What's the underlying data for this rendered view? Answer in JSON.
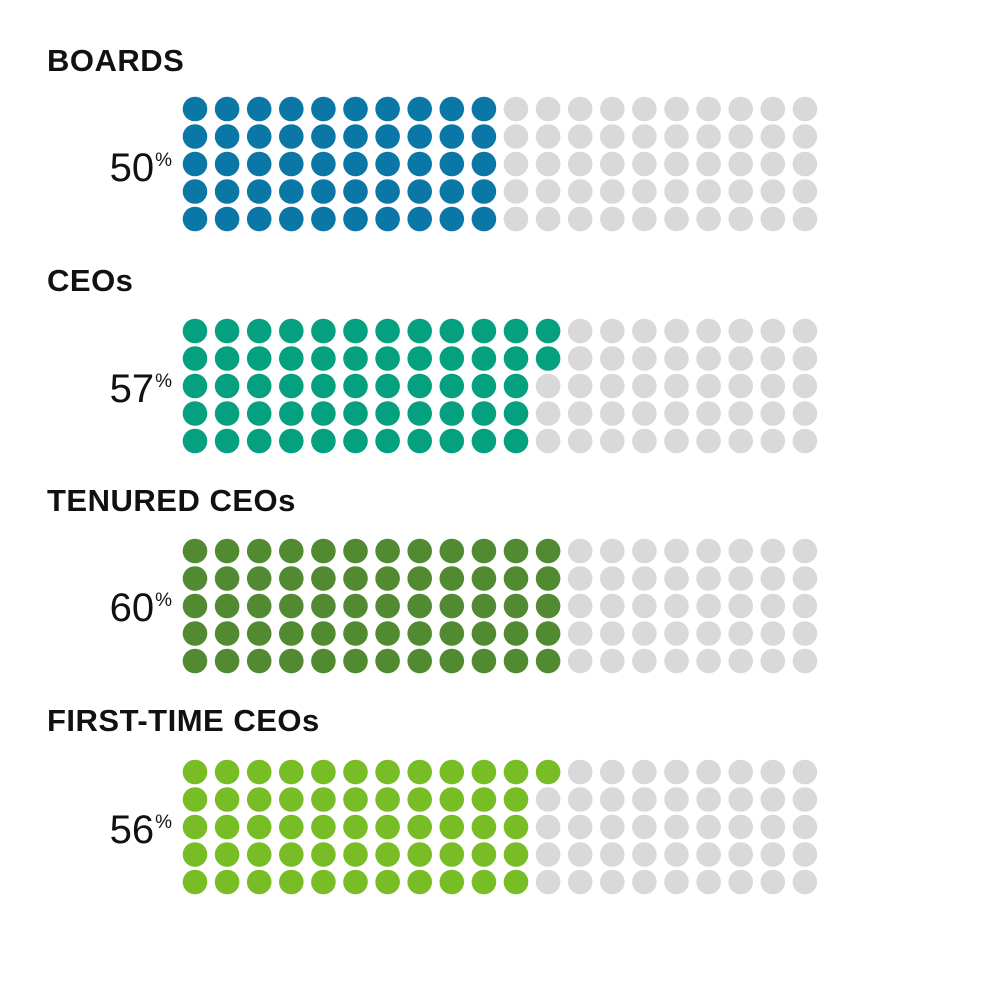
{
  "chart_data": {
    "type": "waffle",
    "grid": {
      "columns": 20,
      "rows": 5,
      "total": 100,
      "fill_order": "column-major"
    },
    "empty_color": "#d9d9d9",
    "series": [
      {
        "label": "BOARDS",
        "value": 50,
        "value_text": "50",
        "unit": "%",
        "color": "#0b77a6"
      },
      {
        "label": "CEOs",
        "value": 57,
        "value_text": "57",
        "unit": "%",
        "color": "#04a080"
      },
      {
        "label": "TENURED CEOs",
        "value": 60,
        "value_text": "60",
        "unit": "%",
        "color": "#528a32"
      },
      {
        "label": "FIRST-TIME CEOs",
        "value": 56,
        "value_text": "56",
        "unit": "%",
        "color": "#78bd26"
      }
    ]
  }
}
